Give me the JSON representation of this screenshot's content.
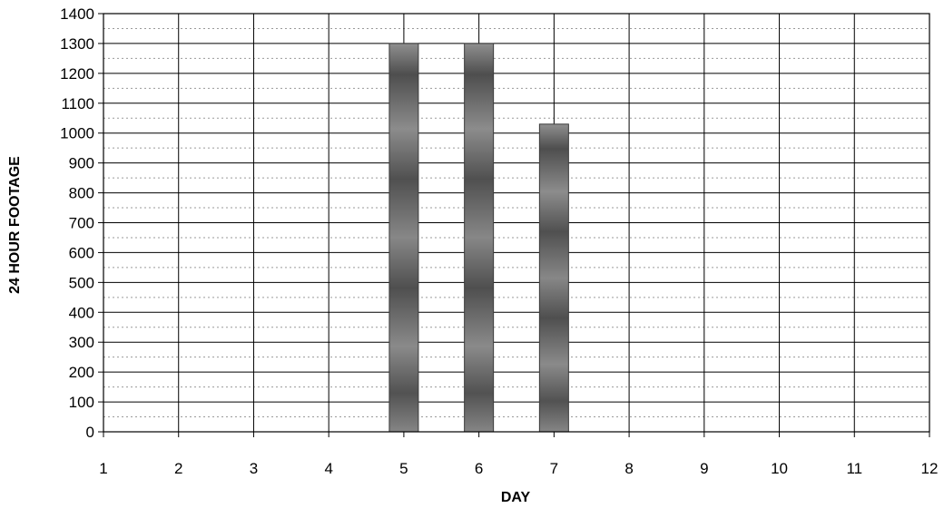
{
  "chart_data": {
    "type": "bar",
    "title": "",
    "xlabel": "DAY",
    "ylabel": "24 HOUR FOOTAGE",
    "x_ticks": [
      "1",
      "2",
      "3",
      "4",
      "5",
      "6",
      "7",
      "8",
      "9",
      "10",
      "11",
      "12"
    ],
    "y_ticks": [
      "0",
      "100",
      "200",
      "300",
      "400",
      "500",
      "600",
      "700",
      "800",
      "900",
      "1000",
      "1100",
      "1200",
      "1300",
      "1400"
    ],
    "xlim": [
      1,
      12
    ],
    "ylim": [
      0,
      1400
    ],
    "grid": true,
    "bars": [
      {
        "x": 5,
        "value": 1300
      },
      {
        "x": 6,
        "value": 1300
      },
      {
        "x": 7,
        "value": 1030
      }
    ],
    "colors": {
      "bar": "#5e5e5e",
      "bar_light": "#8a8a8a",
      "grid": "#000000",
      "faint_grid": "#9a9a9a"
    }
  }
}
